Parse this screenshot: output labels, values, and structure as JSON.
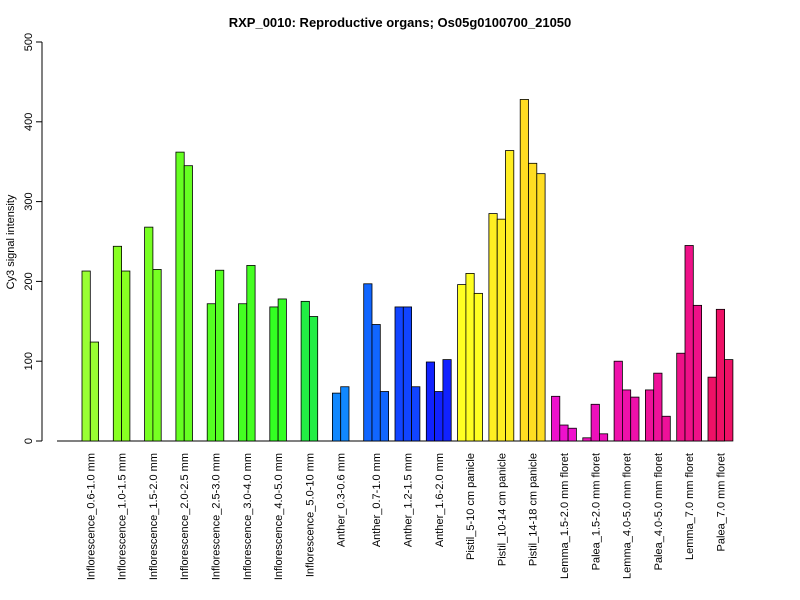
{
  "chart_data": {
    "type": "bar",
    "title": "RXP_0010: Reproductive organs; Os05g0100700_21050",
    "xlabel": "",
    "ylabel": "Cy3 signal intensity",
    "ylim": [
      0,
      500
    ],
    "yticks": [
      0,
      100,
      200,
      300,
      400,
      500
    ],
    "grid": false,
    "groups": [
      {
        "label": "Inflorescence_0.6-1.0 mm",
        "color": "#99FF33",
        "values": [
          213,
          124
        ]
      },
      {
        "label": "Inflorescence_1.0-1.5 mm",
        "color": "#88FF22",
        "values": [
          244,
          213
        ]
      },
      {
        "label": "Inflorescence_1.5-2.0 mm",
        "color": "#77FF22",
        "values": [
          268,
          215
        ]
      },
      {
        "label": "Inflorescence_2.0-2.5 mm",
        "color": "#66FF22",
        "values": [
          362,
          345
        ]
      },
      {
        "label": "Inflorescence_2.5-3.0 mm",
        "color": "#55FF22",
        "values": [
          172,
          214
        ]
      },
      {
        "label": "Inflorescence_3.0-4.0 mm",
        "color": "#44FF22",
        "values": [
          172,
          220
        ]
      },
      {
        "label": "Inflorescence_4.0-5.0 mm",
        "color": "#33FF22",
        "values": [
          168,
          178
        ]
      },
      {
        "label": "Inflorescence_5.0-10 mm",
        "color": "#22EE44",
        "values": [
          175,
          156
        ]
      },
      {
        "label": "Anther_0.3-0.6 mm",
        "color": "#1188FF",
        "values": [
          60,
          68
        ]
      },
      {
        "label": "Anther_0.7-1.0 mm",
        "color": "#1166FF",
        "values": [
          197,
          146,
          62
        ]
      },
      {
        "label": "Anther_1.2-1.5 mm",
        "color": "#1144FF",
        "values": [
          168,
          168,
          68
        ]
      },
      {
        "label": "Anther_1.6-2.0 mm",
        "color": "#1122FF",
        "values": [
          99,
          62,
          102
        ]
      },
      {
        "label": "Pistil_5-10 cm panicle",
        "color": "#FFFF22",
        "values": [
          196,
          210,
          185
        ]
      },
      {
        "label": "Pistil_10-14 cm panicle",
        "color": "#FFEE22",
        "values": [
          285,
          278,
          364
        ]
      },
      {
        "label": "Pistil_14-18 cm panicle",
        "color": "#FFDD22",
        "values": [
          428,
          348,
          335
        ]
      },
      {
        "label": "Lemma_1.5-2.0 mm floret",
        "color": "#EE11CC",
        "values": [
          56,
          20,
          16
        ]
      },
      {
        "label": "Palea_1.5-2.0 mm floret",
        "color": "#EE11BB",
        "values": [
          4,
          46,
          9
        ]
      },
      {
        "label": "Lemma_4.0-5.0 mm floret",
        "color": "#EE11AA",
        "values": [
          100,
          64,
          55
        ]
      },
      {
        "label": "Palea_4.0-5.0 mm floret",
        "color": "#EE1199",
        "values": [
          64,
          85,
          31
        ]
      },
      {
        "label": "Lemma_7.0 mm floret",
        "color": "#EE1188",
        "values": [
          110,
          245,
          170
        ]
      },
      {
        "label": "Palea_7.0 mm floret",
        "color": "#EE1166",
        "values": [
          80,
          165,
          102
        ]
      }
    ]
  }
}
